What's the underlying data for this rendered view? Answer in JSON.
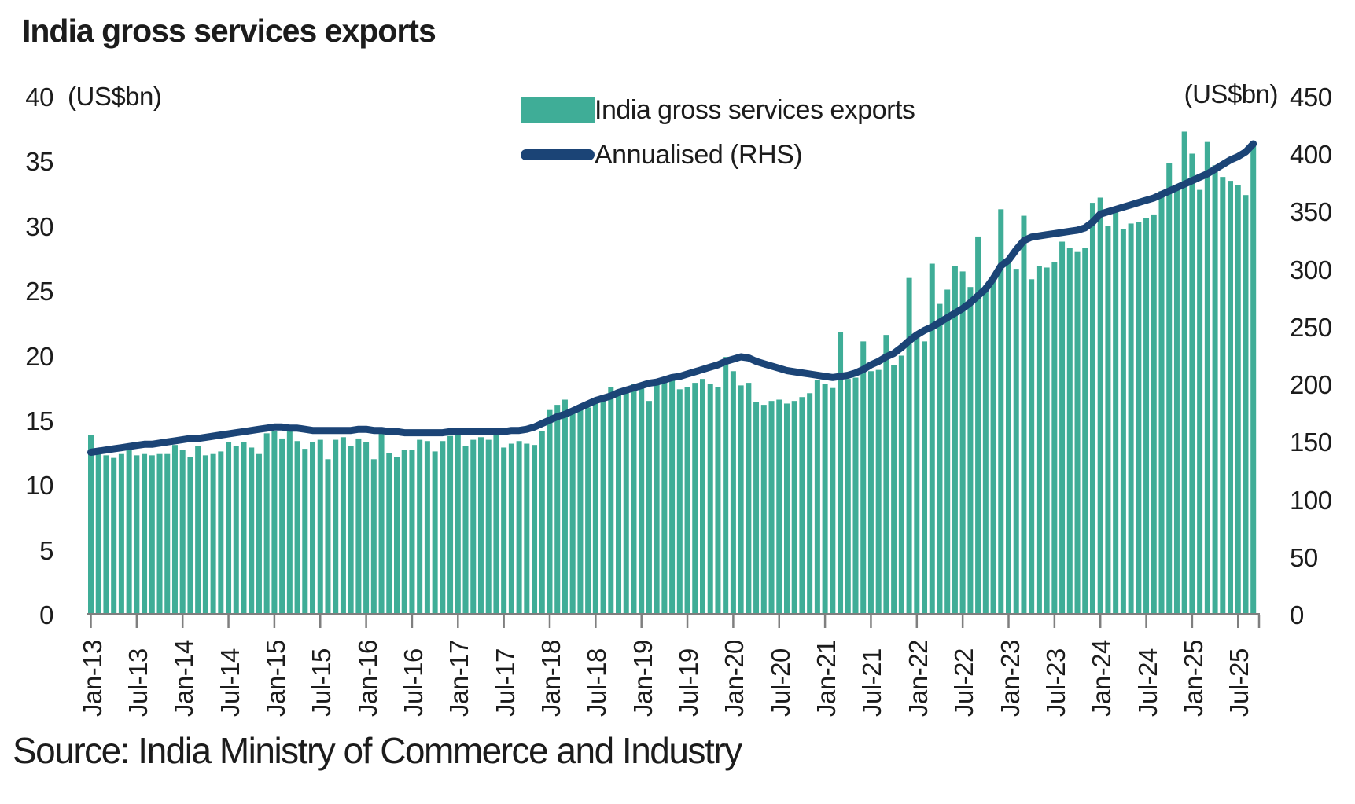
{
  "title": "India gross services exports",
  "source": "Source: India Ministry of Commerce and Industry",
  "left_axis": {
    "unit": "(US$bn)",
    "ticks": [
      "40",
      "35",
      "30",
      "25",
      "20",
      "15",
      "10",
      "5",
      "0"
    ],
    "min": 0,
    "max": 40
  },
  "right_axis": {
    "unit": "(US$bn)",
    "ticks": [
      "450",
      "400",
      "350",
      "300",
      "250",
      "200",
      "150",
      "100",
      "50",
      "0"
    ],
    "min": 0,
    "max": 450
  },
  "legend": {
    "bar_label": "India gross services exports",
    "line_label": "Annualised (RHS)"
  },
  "colors": {
    "bar": "#3fad97",
    "line": "#1b4476",
    "axis": "#7f7f7f",
    "text": "#1c1c1c"
  },
  "chart_data": {
    "type": "bar",
    "title": "India gross services exports",
    "frequency": "monthly",
    "x_start": "Jan-2013",
    "x_end": "Sep-2025",
    "x_tick_labels": [
      "Jan-13",
      "Jul-13",
      "Jan-14",
      "Jul-14",
      "Jan-15",
      "Jul-15",
      "Jan-16",
      "Jul-16",
      "Jan-17",
      "Jul-17",
      "Jan-18",
      "Jul-18",
      "Jan-19",
      "Jul-19",
      "Jan-20",
      "Jul-20",
      "Jan-21",
      "Jul-21",
      "Jan-22",
      "Jul-22",
      "Jan-23",
      "Jul-23",
      "Jan-24",
      "Jul-24",
      "Jan-25",
      "Jul-25"
    ],
    "left_ylim": [
      0,
      40
    ],
    "right_ylim": [
      0,
      450
    ],
    "grid": false,
    "legend_position": "top",
    "series": [
      {
        "name": "India gross services exports",
        "type": "bar",
        "axis": "left",
        "unit": "US$bn",
        "values": [
          13.9,
          12.4,
          12.3,
          12.1,
          12.4,
          12.7,
          12.3,
          12.4,
          12.3,
          12.4,
          12.4,
          13.1,
          12.7,
          12.2,
          13.0,
          12.3,
          12.4,
          12.6,
          13.3,
          13.0,
          13.3,
          12.9,
          12.4,
          14.0,
          14.2,
          13.6,
          14.3,
          13.4,
          12.8,
          13.3,
          13.5,
          12.0,
          13.5,
          13.7,
          13.0,
          13.6,
          13.3,
          12.0,
          14.0,
          12.5,
          12.2,
          12.7,
          12.7,
          13.5,
          13.4,
          12.6,
          13.4,
          13.8,
          13.9,
          13.0,
          13.5,
          13.7,
          13.5,
          14.0,
          12.9,
          13.2,
          13.4,
          13.2,
          13.1,
          14.2,
          15.8,
          16.2,
          16.6,
          15.6,
          16.2,
          16.0,
          16.6,
          16.9,
          17.6,
          17.2,
          17.3,
          17.8,
          17.8,
          16.5,
          18.0,
          18.1,
          18.2,
          17.4,
          17.6,
          17.9,
          18.2,
          17.8,
          17.6,
          19.9,
          18.8,
          17.7,
          17.9,
          16.4,
          16.2,
          16.5,
          16.6,
          16.3,
          16.5,
          16.8,
          17.1,
          18.1,
          17.8,
          17.5,
          21.8,
          18.2,
          18.3,
          21.1,
          18.8,
          18.9,
          21.6,
          19.3,
          20.0,
          26.0,
          21.5,
          21.1,
          27.1,
          24.0,
          25.1,
          26.9,
          26.5,
          25.3,
          29.2,
          25.4,
          25.9,
          31.3,
          27.5,
          26.7,
          30.8,
          25.9,
          26.9,
          26.8,
          27.2,
          28.8,
          28.3,
          28.0,
          28.3,
          31.8,
          32.2,
          30.0,
          31.5,
          29.8,
          30.2,
          30.3,
          30.6,
          30.9,
          32.7,
          34.9,
          32.9,
          37.3,
          35.6,
          32.8,
          36.5,
          34.7,
          33.8,
          33.5,
          33.2,
          32.4,
          36.4
        ]
      },
      {
        "name": "Annualised (RHS)",
        "type": "line",
        "axis": "right",
        "unit": "US$bn",
        "values": [
          141,
          142,
          143,
          144,
          145,
          146,
          147,
          148,
          148,
          149,
          150,
          151,
          152,
          153,
          153,
          154,
          155,
          156,
          157,
          158,
          159,
          160,
          161,
          162,
          163,
          163,
          162,
          162,
          161,
          160,
          160,
          160,
          160,
          160,
          160,
          161,
          161,
          160,
          160,
          159,
          159,
          158,
          158,
          158,
          158,
          158,
          158,
          159,
          159,
          159,
          159,
          159,
          159,
          159,
          159,
          160,
          160,
          161,
          163,
          166,
          169,
          172,
          174,
          177,
          180,
          183,
          186,
          188,
          190,
          193,
          195,
          197,
          199,
          201,
          202,
          204,
          206,
          207,
          209,
          211,
          213,
          215,
          217,
          220,
          222,
          224,
          223,
          220,
          218,
          216,
          214,
          212,
          211,
          210,
          209,
          208,
          207,
          206,
          207,
          208,
          210,
          213,
          217,
          220,
          224,
          227,
          232,
          238,
          243,
          247,
          250,
          254,
          258,
          262,
          266,
          271,
          277,
          283,
          292,
          303,
          308,
          317,
          325,
          328,
          329,
          330,
          331,
          332,
          333,
          334,
          336,
          341,
          348,
          350,
          352,
          354,
          356,
          358,
          360,
          362,
          365,
          368,
          371,
          374,
          377,
          380,
          383,
          387,
          391,
          395,
          398,
          402,
          409
        ]
      }
    ]
  }
}
